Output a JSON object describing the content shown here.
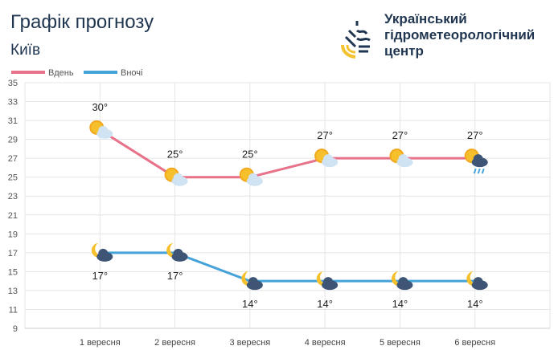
{
  "header": {
    "title": "Графік прогнозу",
    "city": "Київ",
    "organization": "Український гідрометеорологічний центр"
  },
  "chart_data": {
    "type": "line",
    "title": "Графік прогнозу",
    "categories": [
      "1 вересня",
      "2 вересня",
      "3 вересня",
      "4 вересня",
      "5 вересня",
      "6 вересня"
    ],
    "series": [
      {
        "name": "Вдень",
        "color": "#e8728a",
        "values": [
          30,
          25,
          25,
          27,
          27,
          27
        ],
        "labels": [
          "30°",
          "25°",
          "25°",
          "27°",
          "27°",
          "27°"
        ],
        "icons": [
          "sun-cloud",
          "sun-cloud",
          "sun-cloud",
          "sun-cloud",
          "sun-cloud",
          "sun-rain-cloud"
        ]
      },
      {
        "name": "Вночі",
        "color": "#45a3d9",
        "values": [
          17,
          17,
          14,
          14,
          14,
          14
        ],
        "labels": [
          "17°",
          "17°",
          "14°",
          "14°",
          "14°",
          "14°"
        ],
        "icons": [
          "moon-cloud",
          "moon-cloud",
          "moon-cloud",
          "moon-cloud",
          "moon-cloud",
          "moon-cloud"
        ]
      }
    ],
    "yticks": [
      35,
      33,
      31,
      29,
      27,
      25,
      23,
      21,
      19,
      17,
      15,
      13,
      11,
      9
    ],
    "ylim": [
      9,
      35
    ],
    "grid": true,
    "legend": "top-left"
  }
}
